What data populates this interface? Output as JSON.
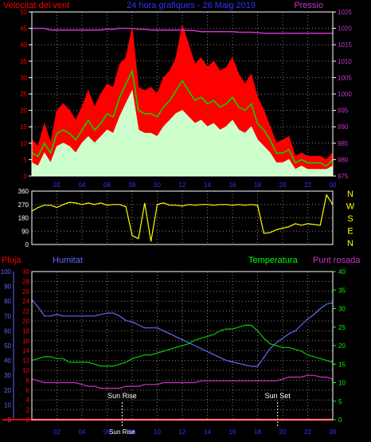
{
  "header": {
    "left_title": "Velocitat del vent",
    "center_title": "24 hora grafiques - 26 Maig 2019",
    "right_title": "Pressio"
  },
  "lower_header": {
    "rain": "Pluja",
    "humidity": "Humitat",
    "temperature": "Temperatura",
    "dewpoint": "Punt rosada"
  },
  "compass": [
    "N",
    "W",
    "S",
    "E",
    "N"
  ],
  "sun_events": {
    "rise_label": "Sun Rise",
    "set_label": "Sun Set",
    "rise_hour": 7.2,
    "set_hour": 19.6
  },
  "colors": {
    "background": "#000000",
    "frame": "#ffffff",
    "grid": "#808080",
    "wind_gust": "#ff0000",
    "wind_avg": "#00dd00",
    "wind_speed": "#ccffcc",
    "pressure": "#cc33cc",
    "direction": "#ffff00",
    "rain": "#ff0000",
    "humidity": "#6666ff",
    "temperature": "#00cc00",
    "dewpoint": "#cc33cc",
    "sun_marker": "#ffffff",
    "rain_axis_text": "#ff0000",
    "humidity_axis_text": "#6666ff",
    "temperature_axis_text": "#00ff00",
    "pressure_axis_text": "#cc33cc"
  },
  "chart_data": [
    {
      "type": "line",
      "name": "wind",
      "x": [
        0,
        0.5,
        1,
        1.5,
        2,
        2.5,
        3,
        3.5,
        4,
        4.5,
        5,
        5.5,
        6,
        6.5,
        7,
        7.5,
        8,
        8.5,
        9,
        9.5,
        10,
        10.5,
        11,
        11.5,
        12,
        12.5,
        13,
        13.5,
        14,
        14.5,
        15,
        15.5,
        16,
        16.5,
        17,
        17.5,
        18,
        18.5,
        19,
        19.5,
        20,
        20.5,
        21,
        21.5,
        22,
        22.5,
        23,
        23.5,
        24
      ],
      "xticks": [
        "02",
        "04",
        "06",
        "08",
        "10",
        "12",
        "14",
        "16",
        "18",
        "20",
        "22",
        "00"
      ],
      "xtick_hours": [
        2,
        4,
        6,
        8,
        10,
        12,
        14,
        16,
        18,
        20,
        22,
        24
      ],
      "xlim": [
        0,
        24
      ],
      "ylim": [
        0,
        50
      ],
      "yticks": [
        0,
        5,
        10,
        15,
        20,
        25,
        30,
        35,
        40,
        45,
        50
      ],
      "y2lim": [
        975,
        1025
      ],
      "y2ticks": [
        975,
        980,
        985,
        990,
        995,
        1000,
        1005,
        1010,
        1015,
        1020,
        1025
      ],
      "series": [
        {
          "values": [
            11,
            9,
            16,
            10,
            20,
            22,
            20,
            17,
            21,
            26,
            21,
            25,
            28,
            27,
            34,
            36,
            45,
            27,
            26,
            27,
            25,
            30,
            32,
            36,
            46,
            40,
            34,
            36,
            33,
            35,
            32,
            33,
            36,
            31,
            28,
            31,
            24,
            20,
            15,
            10,
            11,
            12,
            6,
            7,
            6,
            6,
            6,
            5,
            7
          ]
        },
        {
          "values": [
            7,
            6,
            10,
            7,
            13,
            14,
            13,
            11,
            14,
            17,
            14,
            16,
            19,
            18,
            24,
            28,
            32,
            20,
            19,
            19,
            18,
            21,
            23,
            26,
            29,
            26,
            23,
            24,
            22,
            23,
            21,
            22,
            24,
            21,
            20,
            22,
            16,
            14,
            11,
            7,
            7,
            8,
            4,
            5,
            4,
            4,
            4,
            3,
            5
          ]
        },
        {
          "values": [
            4,
            3,
            7,
            4,
            9,
            10,
            9,
            7,
            10,
            12,
            10,
            12,
            14,
            13,
            18,
            22,
            26,
            14,
            13,
            13,
            12,
            15,
            17,
            19,
            20,
            18,
            16,
            17,
            15,
            16,
            14,
            15,
            17,
            14,
            13,
            15,
            11,
            9,
            7,
            4,
            4,
            5,
            2,
            3,
            2,
            2,
            2,
            2,
            3
          ]
        },
        {
          "values": [
            1020,
            1020,
            1020,
            1019.5,
            1019.5,
            1019.5,
            1019.5,
            1019.5,
            1019.5,
            1019.5,
            1019.5,
            1019.5,
            1019.7,
            1019.7,
            1020,
            1020,
            1020,
            1019.7,
            1019.7,
            1019.5,
            1019.5,
            1019.5,
            1019.5,
            1019.5,
            1019.5,
            1019.4,
            1019.3,
            1019,
            1019,
            1019,
            1019,
            1019,
            1019,
            1018.8,
            1018.8,
            1018.8,
            1018.7,
            1018.5,
            1018.5,
            1018.5,
            1018.5,
            1018.5,
            1018.5,
            1018.5,
            1018.5,
            1018.5,
            1018.5,
            1018.5,
            1018.5
          ]
        }
      ]
    },
    {
      "type": "line",
      "name": "direction",
      "x": [
        0,
        0.5,
        1,
        1.5,
        2,
        2.5,
        3,
        3.5,
        4,
        4.5,
        5,
        5.5,
        6,
        6.5,
        7,
        7.5,
        8,
        8.5,
        9,
        9.5,
        10,
        10.5,
        11,
        11.5,
        12,
        12.5,
        13,
        13.5,
        14,
        14.5,
        15,
        15.5,
        16,
        16.5,
        17,
        17.5,
        18,
        18.5,
        19,
        19.5,
        20,
        20.5,
        21,
        21.5,
        22,
        22.5,
        23,
        23.5,
        24
      ],
      "xlim": [
        0,
        24
      ],
      "ylim": [
        0,
        360
      ],
      "yticks": [
        0,
        90,
        180,
        270,
        360
      ],
      "series": [
        {
          "values": [
            225,
            250,
            265,
            265,
            250,
            270,
            285,
            280,
            270,
            280,
            270,
            280,
            265,
            270,
            270,
            255,
            60,
            40,
            280,
            20,
            270,
            280,
            265,
            265,
            260,
            270,
            265,
            270,
            270,
            265,
            270,
            270,
            265,
            270,
            265,
            270,
            265,
            75,
            80,
            100,
            110,
            120,
            140,
            130,
            140,
            135,
            130,
            335,
            270
          ]
        }
      ]
    },
    {
      "type": "line",
      "name": "climate",
      "x": [
        0,
        0.5,
        1,
        1.5,
        2,
        2.5,
        3,
        3.5,
        4,
        4.5,
        5,
        5.5,
        6,
        6.5,
        7,
        7.5,
        8,
        8.5,
        9,
        9.5,
        10,
        10.5,
        11,
        11.5,
        12,
        12.5,
        13,
        13.5,
        14,
        14.5,
        15,
        15.5,
        16,
        16.5,
        17,
        17.5,
        18,
        18.5,
        19,
        19.5,
        20,
        20.5,
        21,
        21.5,
        22,
        22.5,
        23,
        23.5,
        24
      ],
      "xlim": [
        0,
        24
      ],
      "rain_ylim": [
        0,
        30
      ],
      "rain_yticks": [
        0,
        2,
        4,
        6,
        8,
        10,
        12,
        14,
        16,
        18,
        20,
        22,
        24,
        26,
        28,
        30
      ],
      "humidity_ylim": [
        0,
        100
      ],
      "humidity_yticks": [
        0,
        10,
        20,
        30,
        40,
        50,
        60,
        70,
        80,
        90,
        100
      ],
      "temp_ylim": [
        0,
        40
      ],
      "temp_yticks": [
        0,
        5,
        10,
        15,
        20,
        25,
        30,
        35,
        40
      ],
      "series": [
        {
          "values": [
            0,
            0,
            0,
            0,
            0,
            0,
            0,
            0,
            0,
            0,
            0,
            0,
            0,
            0,
            0,
            0,
            0,
            0,
            0,
            0,
            0,
            0,
            0,
            0,
            0,
            0,
            0,
            0,
            0,
            0,
            0,
            0,
            0,
            0,
            0,
            0,
            0,
            0,
            0,
            0,
            0,
            0,
            0,
            0,
            0,
            0,
            0,
            0,
            0
          ]
        },
        {
          "values": [
            81,
            76,
            70,
            70,
            71,
            70,
            70,
            70,
            70,
            70,
            70,
            71,
            72,
            72,
            70,
            67,
            66,
            64,
            62,
            62,
            62,
            60,
            58,
            56,
            54,
            52,
            50,
            48,
            46,
            44,
            42,
            40,
            39,
            38,
            37,
            36,
            36,
            42,
            48,
            52,
            55,
            58,
            60,
            64,
            68,
            71,
            75,
            78,
            79
          ]
        },
        {
          "values": [
            16,
            16.5,
            17,
            17,
            16.5,
            16.5,
            15.5,
            15.5,
            15.5,
            15.5,
            15,
            14.5,
            14.5,
            14.5,
            15,
            15.5,
            16.5,
            17,
            17.5,
            17.5,
            18,
            18.5,
            19,
            19.5,
            20,
            20.5,
            21.5,
            22,
            22.5,
            23,
            24,
            24.5,
            24.5,
            25,
            25.5,
            25.5,
            24,
            22,
            20.5,
            20,
            19.5,
            19.5,
            19,
            18.5,
            17.5,
            17,
            16.5,
            16,
            15.5
          ]
        },
        {
          "values": [
            11,
            10.5,
            10,
            10,
            10,
            10,
            10,
            10,
            9.5,
            9,
            9,
            8.5,
            8.5,
            8.5,
            8.5,
            9,
            9,
            9,
            9.5,
            9.5,
            9.5,
            10,
            10,
            10,
            10,
            10,
            10,
            10.5,
            10.5,
            10.5,
            10.5,
            10.5,
            10.5,
            10.5,
            10.5,
            10.5,
            10.5,
            10.5,
            10.5,
            10.5,
            11,
            11.5,
            11.5,
            11.5,
            12,
            12,
            11.5,
            11.5,
            11
          ]
        }
      ]
    }
  ]
}
